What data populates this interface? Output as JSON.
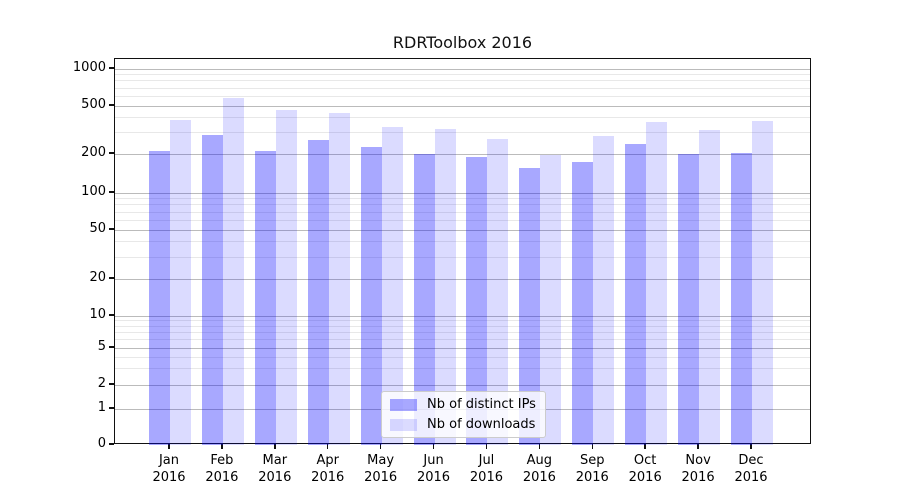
{
  "title": "RDRToolbox 2016",
  "chart_data": {
    "type": "bar",
    "title": "RDRToolbox 2016",
    "categories": [
      "Jan 2016",
      "Feb 2016",
      "Mar 2016",
      "Apr 2016",
      "May 2016",
      "Jun 2016",
      "Jul 2016",
      "Aug 2016",
      "Sep 2016",
      "Oct 2016",
      "Nov 2016",
      "Dec 2016"
    ],
    "series": [
      {
        "name": "Nb of distinct IPs",
        "color": "rgba(0,0,255,0.34)",
        "values": [
          210,
          285,
          210,
          260,
          230,
          200,
          190,
          155,
          175,
          240,
          200,
          205
        ]
      },
      {
        "name": "Nb of downloads",
        "color": "rgba(0,0,255,0.14)",
        "values": [
          380,
          580,
          460,
          435,
          335,
          320,
          265,
          195,
          280,
          370,
          315,
          375
        ]
      }
    ],
    "yscale": "symlog",
    "ylim": [
      0,
      1000
    ],
    "yticks": [
      0,
      1,
      2,
      5,
      10,
      20,
      50,
      100,
      200,
      500,
      1000
    ],
    "minor_gridlines": [
      3,
      4,
      6,
      7,
      8,
      9,
      30,
      40,
      60,
      70,
      80,
      90,
      300,
      400,
      600,
      700,
      800,
      900
    ],
    "grid": true,
    "legend_position": "lower center"
  },
  "legend": {
    "items": [
      {
        "label": "Nb of distinct IPs"
      },
      {
        "label": "Nb of downloads"
      }
    ]
  },
  "colors": {
    "bar_ips": "rgba(0,0,255,0.34)",
    "bar_downloads": "rgba(0,0,255,0.14)",
    "grid_major": "#bbbbbb",
    "grid_minor": "#e8e8e8",
    "spine": "#111111",
    "legend_bg": "rgba(255,255,255,0.8)",
    "legend_border": "#cccccc",
    "text": "#000000"
  }
}
